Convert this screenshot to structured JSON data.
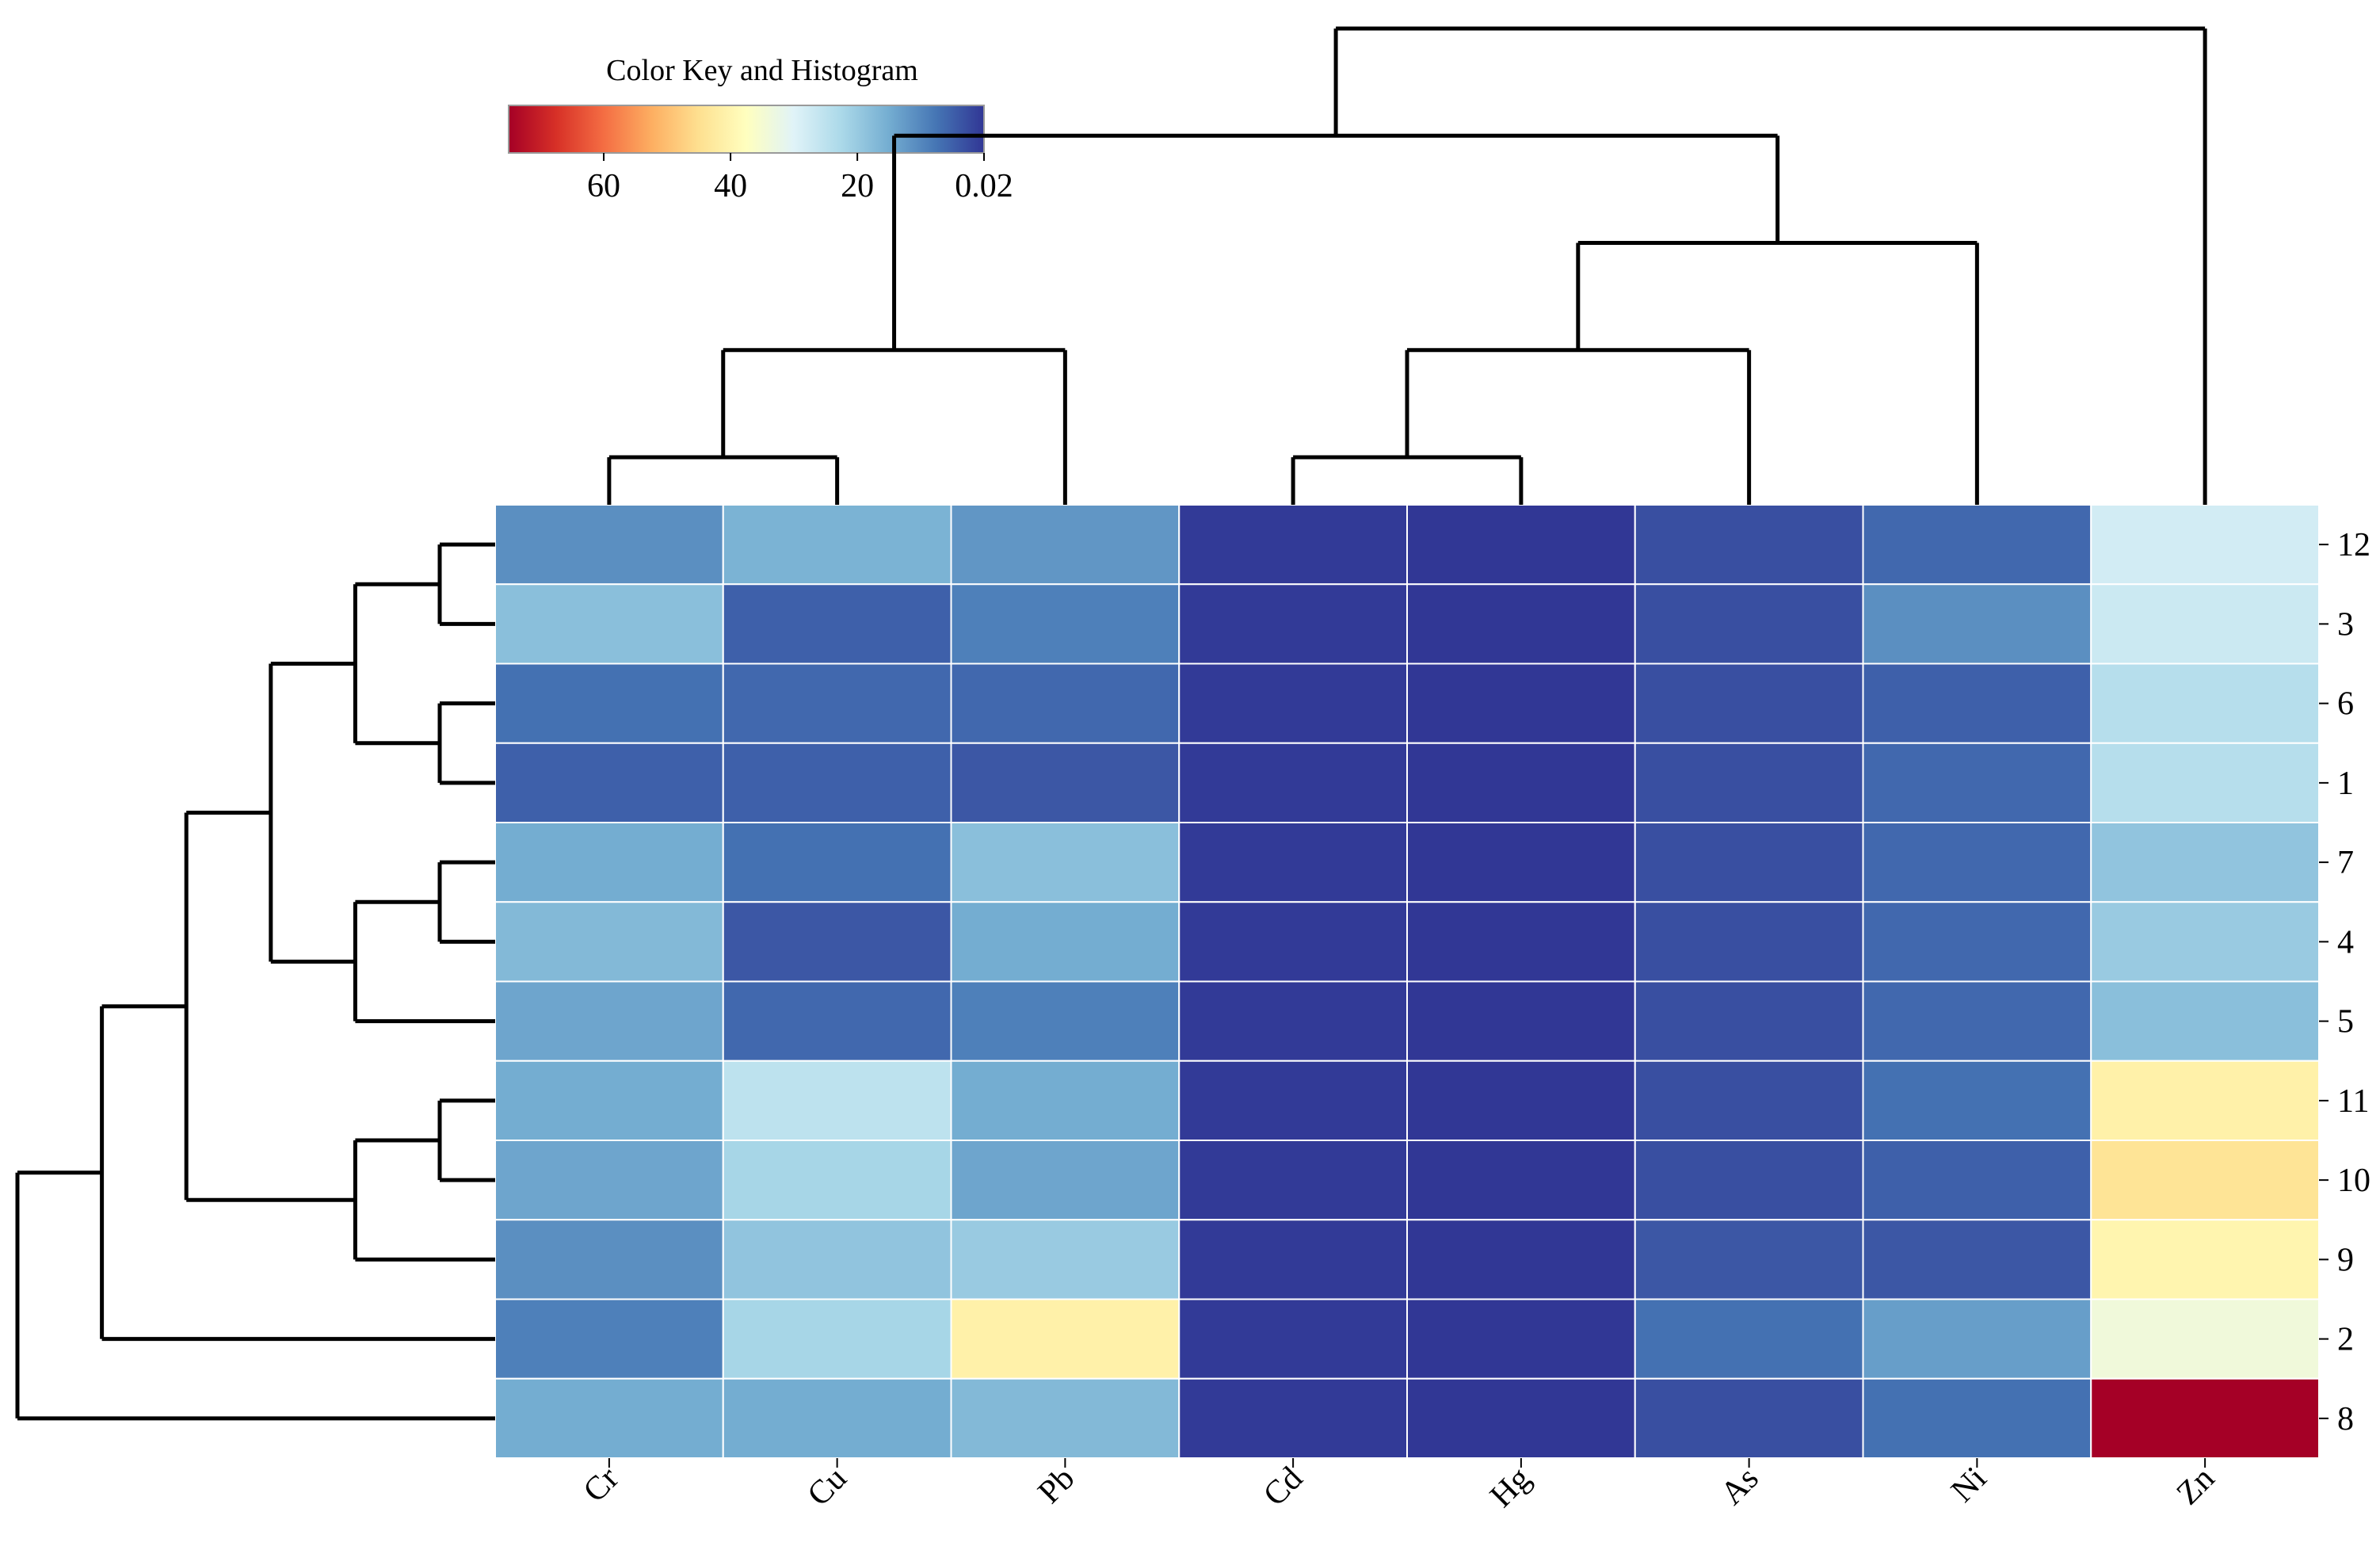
{
  "chart_data": {
    "type": "heatmap",
    "title": "",
    "color_key": {
      "title": "Color Key and Histogram",
      "tick_labels": [
        "60",
        "40",
        "20",
        "0.02"
      ],
      "tick_values": [
        60,
        40,
        20,
        0.02
      ],
      "range": [
        0.02,
        75
      ],
      "colors": [
        "#a50026",
        "#d73027",
        "#f46d43",
        "#fdae61",
        "#fee090",
        "#ffffbf",
        "#e0f3f8",
        "#abd9e9",
        "#74add1",
        "#4575b4",
        "#313695"
      ]
    },
    "columns": [
      "Cr",
      "Cu",
      "Pb",
      "Cd",
      "Hg",
      "As",
      "Ni",
      "Zn"
    ],
    "rows": [
      "12",
      "3",
      "6",
      "1",
      "7",
      "4",
      "5",
      "11",
      "10",
      "9",
      "2",
      "8"
    ],
    "values": [
      [
        11,
        16,
        12,
        0.5,
        0.1,
        3,
        6,
        28
      ],
      [
        18,
        5,
        9,
        0.5,
        0.1,
        3,
        11,
        27
      ],
      [
        7,
        6,
        6,
        0.5,
        0.1,
        3,
        5,
        24
      ],
      [
        5,
        5,
        4,
        0.5,
        0.1,
        3,
        6,
        24
      ],
      [
        15,
        7,
        18,
        0.5,
        0.1,
        3,
        6,
        19
      ],
      [
        17,
        4,
        15,
        0.5,
        0.1,
        3,
        6,
        20
      ],
      [
        14,
        6,
        9,
        0.5,
        0.1,
        3,
        6,
        18
      ],
      [
        15,
        25,
        15,
        0.5,
        0.1,
        3,
        7,
        41
      ],
      [
        14,
        22,
        14,
        0.5,
        0.1,
        3,
        5,
        44
      ],
      [
        11,
        19,
        20,
        0.5,
        0.1,
        4,
        4,
        40
      ],
      [
        9,
        22,
        41,
        0.5,
        0.1,
        7,
        13,
        34
      ],
      [
        15,
        15,
        17,
        0.5,
        0.1,
        3,
        7,
        75
      ]
    ],
    "column_dendrogram": "((((Cr,Cu),Pb),(((Cd,Hg),As),Ni)),Zn)",
    "row_dendrogram": "((((((12,3),(6,1)),((7,4),5)),((11,10),9)),2),8)",
    "colors": {
      "cell_border": "#ffffff",
      "line": "#000000"
    }
  }
}
